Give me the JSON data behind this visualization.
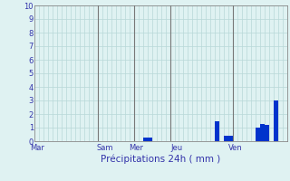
{
  "xlabel": "Précipitations 24h ( mm )",
  "ylim": [
    0,
    10
  ],
  "bar_color": "#0033cc",
  "background_color": "#dff2f2",
  "grid_color": "#b8d8d8",
  "axis_line_color": "#888888",
  "text_color": "#3333aa",
  "bar_values": [
    0,
    0,
    0,
    0,
    0,
    0,
    0,
    0,
    0,
    0,
    0,
    0,
    0,
    0,
    0,
    0,
    0,
    0,
    0,
    0,
    0,
    0,
    0,
    0,
    0.3,
    0.3,
    0,
    0,
    0,
    0,
    0,
    0,
    0,
    0,
    0,
    0,
    0,
    0,
    0,
    0,
    1.5,
    0,
    0.4,
    0.4,
    0,
    0,
    0,
    0,
    0,
    1.0,
    1.3,
    1.2,
    0,
    3.0,
    0,
    0
  ],
  "day_labels": [
    "Mar",
    "Sam",
    "Mer",
    "Jeu",
    "Ven"
  ],
  "day_positions": [
    0,
    15,
    22,
    31,
    44
  ],
  "vertical_lines": [
    14,
    22,
    30,
    44
  ],
  "tick_fontsize": 6,
  "label_fontsize": 7.5
}
